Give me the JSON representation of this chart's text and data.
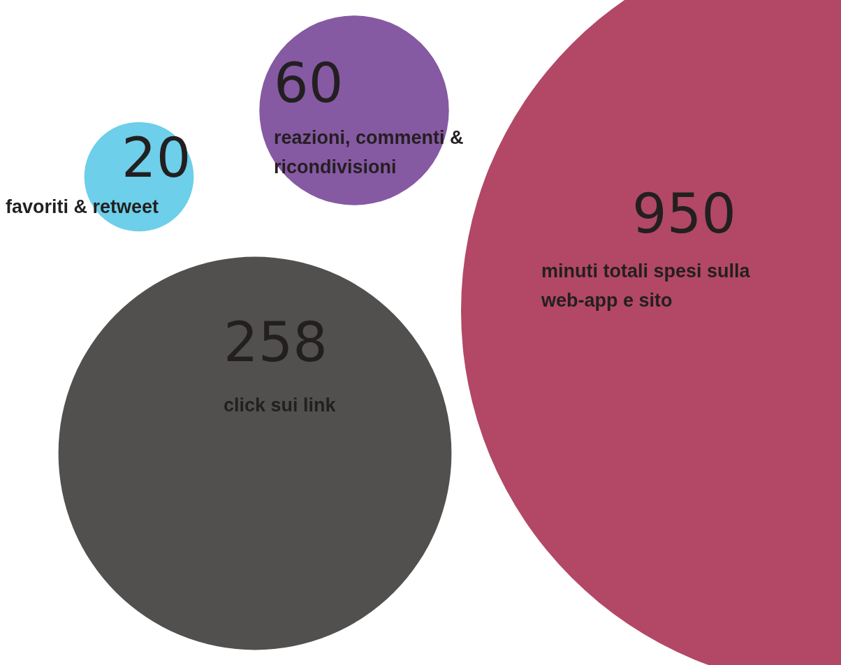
{
  "chart_data": {
    "type": "other",
    "categories": [
      "favoriti & retweet",
      "reazioni, commenti & ricondivisioni",
      "click sui link",
      "minuti totali spesi sulla web-app e sito"
    ],
    "values": [
      20,
      60,
      258,
      950
    ],
    "colors": [
      "#6dcfea",
      "#8659a3",
      "#52504f",
      "#b24865"
    ],
    "data_labels": true
  }
}
